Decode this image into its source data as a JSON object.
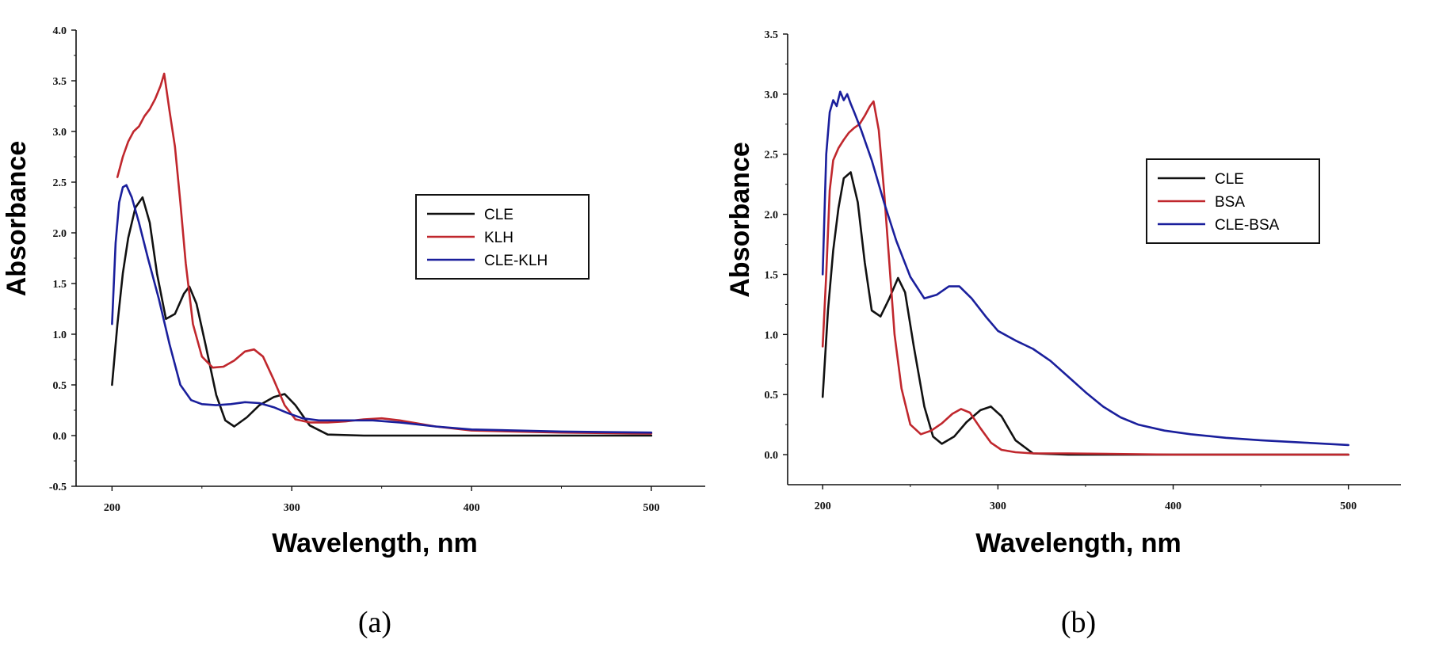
{
  "chart_data": [
    {
      "type": "line",
      "panel_label": "(a)",
      "xlabel": "Wavelength, nm",
      "ylabel": "Absorbance",
      "xlim": [
        180,
        530
      ],
      "ylim": [
        -0.5,
        4.0
      ],
      "xticks": [
        200,
        300,
        400,
        500
      ],
      "xtick_labels": [
        "200",
        "300",
        "400",
        "500"
      ],
      "yticks": [
        -0.5,
        0.0,
        0.5,
        1.0,
        1.5,
        2.0,
        2.5,
        3.0,
        3.5,
        4.0
      ],
      "ytick_labels": [
        "-0.5",
        "0.0",
        "0.5",
        "1.0",
        "1.5",
        "2.0",
        "2.5",
        "3.0",
        "3.5",
        "4.0"
      ],
      "legend_position": "center-right",
      "series": [
        {
          "name": "CLE",
          "color": "#111111",
          "x": [
            200,
            203,
            206,
            209,
            213,
            217,
            221,
            225,
            230,
            235,
            240,
            243,
            247,
            252,
            258,
            263,
            268,
            275,
            282,
            290,
            296,
            302,
            310,
            320,
            340,
            400,
            500
          ],
          "y": [
            0.5,
            1.1,
            1.6,
            1.95,
            2.25,
            2.35,
            2.1,
            1.6,
            1.15,
            1.2,
            1.4,
            1.47,
            1.3,
            0.9,
            0.4,
            0.15,
            0.09,
            0.18,
            0.3,
            0.38,
            0.41,
            0.3,
            0.1,
            0.01,
            0.0,
            0.0,
            0.0
          ]
        },
        {
          "name": "KLH",
          "color": "#c0272d",
          "x": [
            203,
            206,
            209,
            212,
            215,
            218,
            221,
            224,
            227,
            229,
            232,
            235,
            238,
            241,
            245,
            250,
            256,
            262,
            268,
            274,
            279,
            284,
            290,
            296,
            302,
            310,
            320,
            330,
            340,
            350,
            360,
            380,
            400,
            450,
            500
          ],
          "y": [
            2.55,
            2.75,
            2.9,
            3.0,
            3.05,
            3.15,
            3.22,
            3.32,
            3.45,
            3.57,
            3.2,
            2.85,
            2.3,
            1.7,
            1.1,
            0.78,
            0.67,
            0.68,
            0.74,
            0.83,
            0.85,
            0.78,
            0.55,
            0.3,
            0.16,
            0.13,
            0.13,
            0.14,
            0.16,
            0.17,
            0.15,
            0.09,
            0.05,
            0.03,
            0.02
          ]
        },
        {
          "name": "CLE-KLH",
          "color": "#1a1f9c",
          "x": [
            200,
            202,
            204,
            206,
            208,
            211,
            215,
            220,
            226,
            232,
            238,
            244,
            250,
            258,
            266,
            274,
            282,
            290,
            298,
            306,
            315,
            330,
            345,
            360,
            380,
            400,
            450,
            500
          ],
          "y": [
            1.1,
            1.9,
            2.3,
            2.45,
            2.47,
            2.35,
            2.1,
            1.75,
            1.35,
            0.9,
            0.5,
            0.35,
            0.31,
            0.3,
            0.31,
            0.33,
            0.32,
            0.28,
            0.22,
            0.17,
            0.15,
            0.15,
            0.15,
            0.13,
            0.09,
            0.06,
            0.04,
            0.03
          ]
        }
      ]
    },
    {
      "type": "line",
      "panel_label": "(b)",
      "xlabel": "Wavelength, nm",
      "ylabel": "Absorbance",
      "xlim": [
        180,
        530
      ],
      "ylim": [
        -0.25,
        3.5
      ],
      "xticks": [
        200,
        300,
        400,
        500
      ],
      "xtick_labels": [
        "200",
        "300",
        "400",
        "500"
      ],
      "yticks": [
        0.0,
        0.5,
        1.0,
        1.5,
        2.0,
        2.5,
        3.0,
        3.5
      ],
      "ytick_labels": [
        "0.0",
        "0.5",
        "1.0",
        "1.5",
        "2.0",
        "2.5",
        "3.0",
        "3.5"
      ],
      "legend_position": "upper-right",
      "series": [
        {
          "name": "CLE",
          "color": "#111111",
          "x": [
            200,
            203,
            206,
            209,
            212,
            216,
            220,
            224,
            228,
            233,
            238,
            243,
            247,
            252,
            258,
            263,
            268,
            275,
            282,
            290,
            296,
            302,
            310,
            320,
            340,
            400,
            500
          ],
          "y": [
            0.48,
            1.2,
            1.7,
            2.05,
            2.3,
            2.35,
            2.1,
            1.6,
            1.2,
            1.15,
            1.3,
            1.47,
            1.35,
            0.9,
            0.4,
            0.15,
            0.09,
            0.15,
            0.27,
            0.37,
            0.4,
            0.32,
            0.12,
            0.01,
            0.0,
            0.0,
            0.0
          ]
        },
        {
          "name": "BSA",
          "color": "#c0272d",
          "x": [
            200,
            202,
            204,
            206,
            209,
            212,
            215,
            218,
            221,
            224,
            227,
            229,
            232,
            235,
            238,
            241,
            245,
            250,
            256,
            262,
            268,
            274,
            279,
            284,
            290,
            296,
            302,
            310,
            320,
            340,
            400,
            500
          ],
          "y": [
            0.9,
            1.5,
            2.2,
            2.45,
            2.55,
            2.62,
            2.68,
            2.72,
            2.75,
            2.82,
            2.9,
            2.94,
            2.7,
            2.2,
            1.6,
            1.0,
            0.55,
            0.25,
            0.17,
            0.2,
            0.26,
            0.34,
            0.38,
            0.35,
            0.22,
            0.1,
            0.04,
            0.02,
            0.01,
            0.01,
            0.0,
            0.0
          ]
        },
        {
          "name": "CLE-BSA",
          "color": "#1a1f9c",
          "x": [
            200,
            202,
            204,
            206,
            208,
            210,
            212,
            214,
            216,
            218,
            222,
            228,
            235,
            242,
            250,
            258,
            265,
            272,
            278,
            285,
            293,
            300,
            310,
            320,
            330,
            340,
            350,
            360,
            370,
            380,
            395,
            410,
            430,
            450,
            475,
            500
          ],
          "y": [
            1.5,
            2.5,
            2.85,
            2.95,
            2.9,
            3.02,
            2.95,
            3.0,
            2.92,
            2.85,
            2.7,
            2.45,
            2.1,
            1.78,
            1.48,
            1.3,
            1.33,
            1.4,
            1.4,
            1.3,
            1.15,
            1.03,
            0.95,
            0.88,
            0.78,
            0.65,
            0.52,
            0.4,
            0.31,
            0.25,
            0.2,
            0.17,
            0.14,
            0.12,
            0.1,
            0.08
          ]
        }
      ]
    }
  ]
}
